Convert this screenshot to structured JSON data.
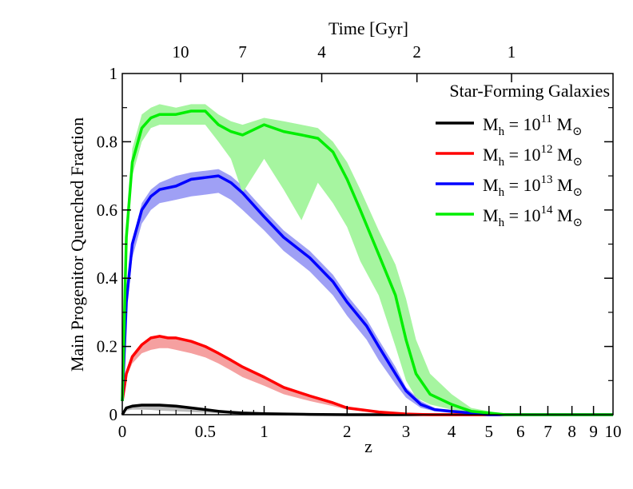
{
  "chart_data": {
    "type": "line",
    "title": "",
    "xlabel": "z",
    "ylabel": "Main Progenitor Quenched Fraction",
    "x2label": "Time [Gyr]",
    "x_scale": "log(1+z)",
    "xlim": [
      0,
      10
    ],
    "ylim": [
      0,
      1
    ],
    "x_ticks": [
      0,
      0.5,
      1,
      2,
      3,
      4,
      5,
      6,
      7,
      8,
      9,
      10
    ],
    "x_tick_labels": [
      "0",
      "0.5",
      "1",
      "2",
      "3",
      "4",
      "5",
      "6",
      "7",
      "8",
      "9",
      "10"
    ],
    "y_ticks": [
      0,
      0.2,
      0.4,
      0.6,
      0.8,
      1
    ],
    "y_tick_labels": [
      "0",
      "0.2",
      "0.4",
      "0.6",
      "0.8",
      "1"
    ],
    "top_axis": {
      "label": "Time [Gyr]",
      "ticks": [
        {
          "label": "10",
          "z": 0.33
        },
        {
          "label": "7",
          "z": 0.8
        },
        {
          "label": "4",
          "z": 1.65
        },
        {
          "label": "2",
          "z": 3.22
        },
        {
          "label": "1",
          "z": 5.7
        }
      ]
    },
    "legend": {
      "title": "Star-Forming Galaxies",
      "placement": "top-right",
      "entries": [
        {
          "prefix": "M",
          "sub": "h",
          "eq": " = 10",
          "exp": "11",
          "unit": " M",
          "sun": "⊙"
        },
        {
          "prefix": "M",
          "sub": "h",
          "eq": " = 10",
          "exp": "12",
          "unit": " M",
          "sun": "⊙"
        },
        {
          "prefix": "M",
          "sub": "h",
          "eq": " = 10",
          "exp": "13",
          "unit": " M",
          "sun": "⊙"
        },
        {
          "prefix": "M",
          "sub": "h",
          "eq": " = 10",
          "exp": "14",
          "unit": " M",
          "sun": "⊙"
        }
      ]
    },
    "series": [
      {
        "color": "#000000",
        "band_color": "#bbbbbb",
        "x": [
          0,
          0.02,
          0.05,
          0.1,
          0.15,
          0.2,
          0.3,
          0.4,
          0.5,
          0.6,
          0.7,
          0.8,
          1.0,
          1.2,
          1.5,
          2.0,
          10
        ],
        "y": [
          0.0,
          0.02,
          0.025,
          0.028,
          0.028,
          0.028,
          0.025,
          0.02,
          0.015,
          0.01,
          0.007,
          0.005,
          0.003,
          0.002,
          0.001,
          0.0,
          0.0
        ],
        "band_lower": [
          0.0,
          0.012,
          0.015,
          0.015,
          0.014,
          0.012,
          0.01,
          0.008,
          0.006,
          0.004,
          0.003,
          0.002,
          0.001,
          0.0,
          0.0,
          0.0,
          0.0
        ],
        "band_upper": [
          0.0,
          0.02,
          0.025,
          0.028,
          0.028,
          0.028,
          0.025,
          0.02,
          0.015,
          0.01,
          0.007,
          0.005,
          0.003,
          0.002,
          0.001,
          0.0,
          0.0
        ]
      },
      {
        "color": "#ff0000",
        "band_color": "#f5a0a0",
        "x": [
          0,
          0.02,
          0.05,
          0.1,
          0.15,
          0.2,
          0.25,
          0.3,
          0.4,
          0.5,
          0.6,
          0.7,
          0.8,
          1.0,
          1.2,
          1.5,
          1.8,
          2.0,
          2.5,
          3.0,
          3.5,
          10
        ],
        "y": [
          0.04,
          0.12,
          0.17,
          0.205,
          0.225,
          0.23,
          0.225,
          0.225,
          0.215,
          0.2,
          0.18,
          0.16,
          0.14,
          0.11,
          0.08,
          0.055,
          0.035,
          0.02,
          0.008,
          0.002,
          0.0,
          0.0
        ],
        "band_lower": [
          0.04,
          0.11,
          0.15,
          0.18,
          0.19,
          0.195,
          0.195,
          0.19,
          0.18,
          0.168,
          0.15,
          0.13,
          0.11,
          0.085,
          0.06,
          0.04,
          0.025,
          0.015,
          0.005,
          0.001,
          0.0,
          0.0
        ],
        "band_upper": [
          0.04,
          0.12,
          0.17,
          0.205,
          0.225,
          0.23,
          0.225,
          0.225,
          0.215,
          0.2,
          0.18,
          0.16,
          0.14,
          0.11,
          0.08,
          0.055,
          0.035,
          0.02,
          0.008,
          0.002,
          0.0,
          0.0
        ]
      },
      {
        "color": "#0000ff",
        "band_color": "#9fa0f5",
        "x": [
          0,
          0.02,
          0.05,
          0.1,
          0.15,
          0.2,
          0.25,
          0.3,
          0.4,
          0.5,
          0.6,
          0.7,
          0.8,
          1.0,
          1.2,
          1.5,
          1.8,
          2.0,
          2.3,
          2.5,
          2.8,
          3.0,
          3.3,
          3.6,
          4.0,
          4.5,
          5.0,
          10
        ],
        "y": [
          0.04,
          0.33,
          0.5,
          0.6,
          0.64,
          0.66,
          0.665,
          0.67,
          0.69,
          0.695,
          0.7,
          0.68,
          0.65,
          0.58,
          0.52,
          0.46,
          0.39,
          0.33,
          0.26,
          0.2,
          0.12,
          0.07,
          0.03,
          0.015,
          0.01,
          0.005,
          0.0,
          0.0
        ],
        "band_lower": [
          0.04,
          0.3,
          0.46,
          0.56,
          0.6,
          0.62,
          0.625,
          0.63,
          0.64,
          0.645,
          0.65,
          0.63,
          0.6,
          0.54,
          0.48,
          0.42,
          0.35,
          0.29,
          0.22,
          0.16,
          0.09,
          0.05,
          0.02,
          0.01,
          0.005,
          0.002,
          0.0,
          0.0
        ],
        "band_upper": [
          0.04,
          0.33,
          0.51,
          0.62,
          0.66,
          0.68,
          0.69,
          0.7,
          0.71,
          0.715,
          0.72,
          0.7,
          0.67,
          0.6,
          0.54,
          0.48,
          0.41,
          0.35,
          0.28,
          0.22,
          0.14,
          0.08,
          0.04,
          0.02,
          0.01,
          0.005,
          0.0,
          0.0
        ]
      },
      {
        "color": "#00ee00",
        "band_color": "#a6f5a0",
        "x": [
          0,
          0.02,
          0.05,
          0.1,
          0.15,
          0.2,
          0.3,
          0.4,
          0.5,
          0.6,
          0.7,
          0.8,
          1.0,
          1.2,
          1.4,
          1.6,
          1.8,
          2.0,
          2.2,
          2.5,
          2.8,
          3.0,
          3.2,
          3.5,
          4.0,
          4.5,
          5.0,
          5.5,
          10
        ],
        "y": [
          0.04,
          0.52,
          0.74,
          0.84,
          0.87,
          0.88,
          0.88,
          0.89,
          0.89,
          0.85,
          0.83,
          0.82,
          0.85,
          0.83,
          0.82,
          0.81,
          0.77,
          0.69,
          0.6,
          0.47,
          0.35,
          0.22,
          0.12,
          0.06,
          0.03,
          0.01,
          0.005,
          0.0,
          0.0
        ],
        "band_lower": [
          0.04,
          0.48,
          0.7,
          0.8,
          0.84,
          0.85,
          0.85,
          0.85,
          0.85,
          0.8,
          0.75,
          0.65,
          0.75,
          0.66,
          0.57,
          0.68,
          0.62,
          0.55,
          0.45,
          0.35,
          0.2,
          0.1,
          0.05,
          0.03,
          0.015,
          0.005,
          0.0,
          0.0,
          0.0
        ],
        "band_upper": [
          0.04,
          0.55,
          0.78,
          0.88,
          0.9,
          0.91,
          0.9,
          0.91,
          0.91,
          0.88,
          0.86,
          0.85,
          0.87,
          0.86,
          0.85,
          0.84,
          0.8,
          0.74,
          0.66,
          0.54,
          0.44,
          0.34,
          0.22,
          0.12,
          0.06,
          0.02,
          0.01,
          0.0,
          0.0
        ]
      }
    ]
  }
}
